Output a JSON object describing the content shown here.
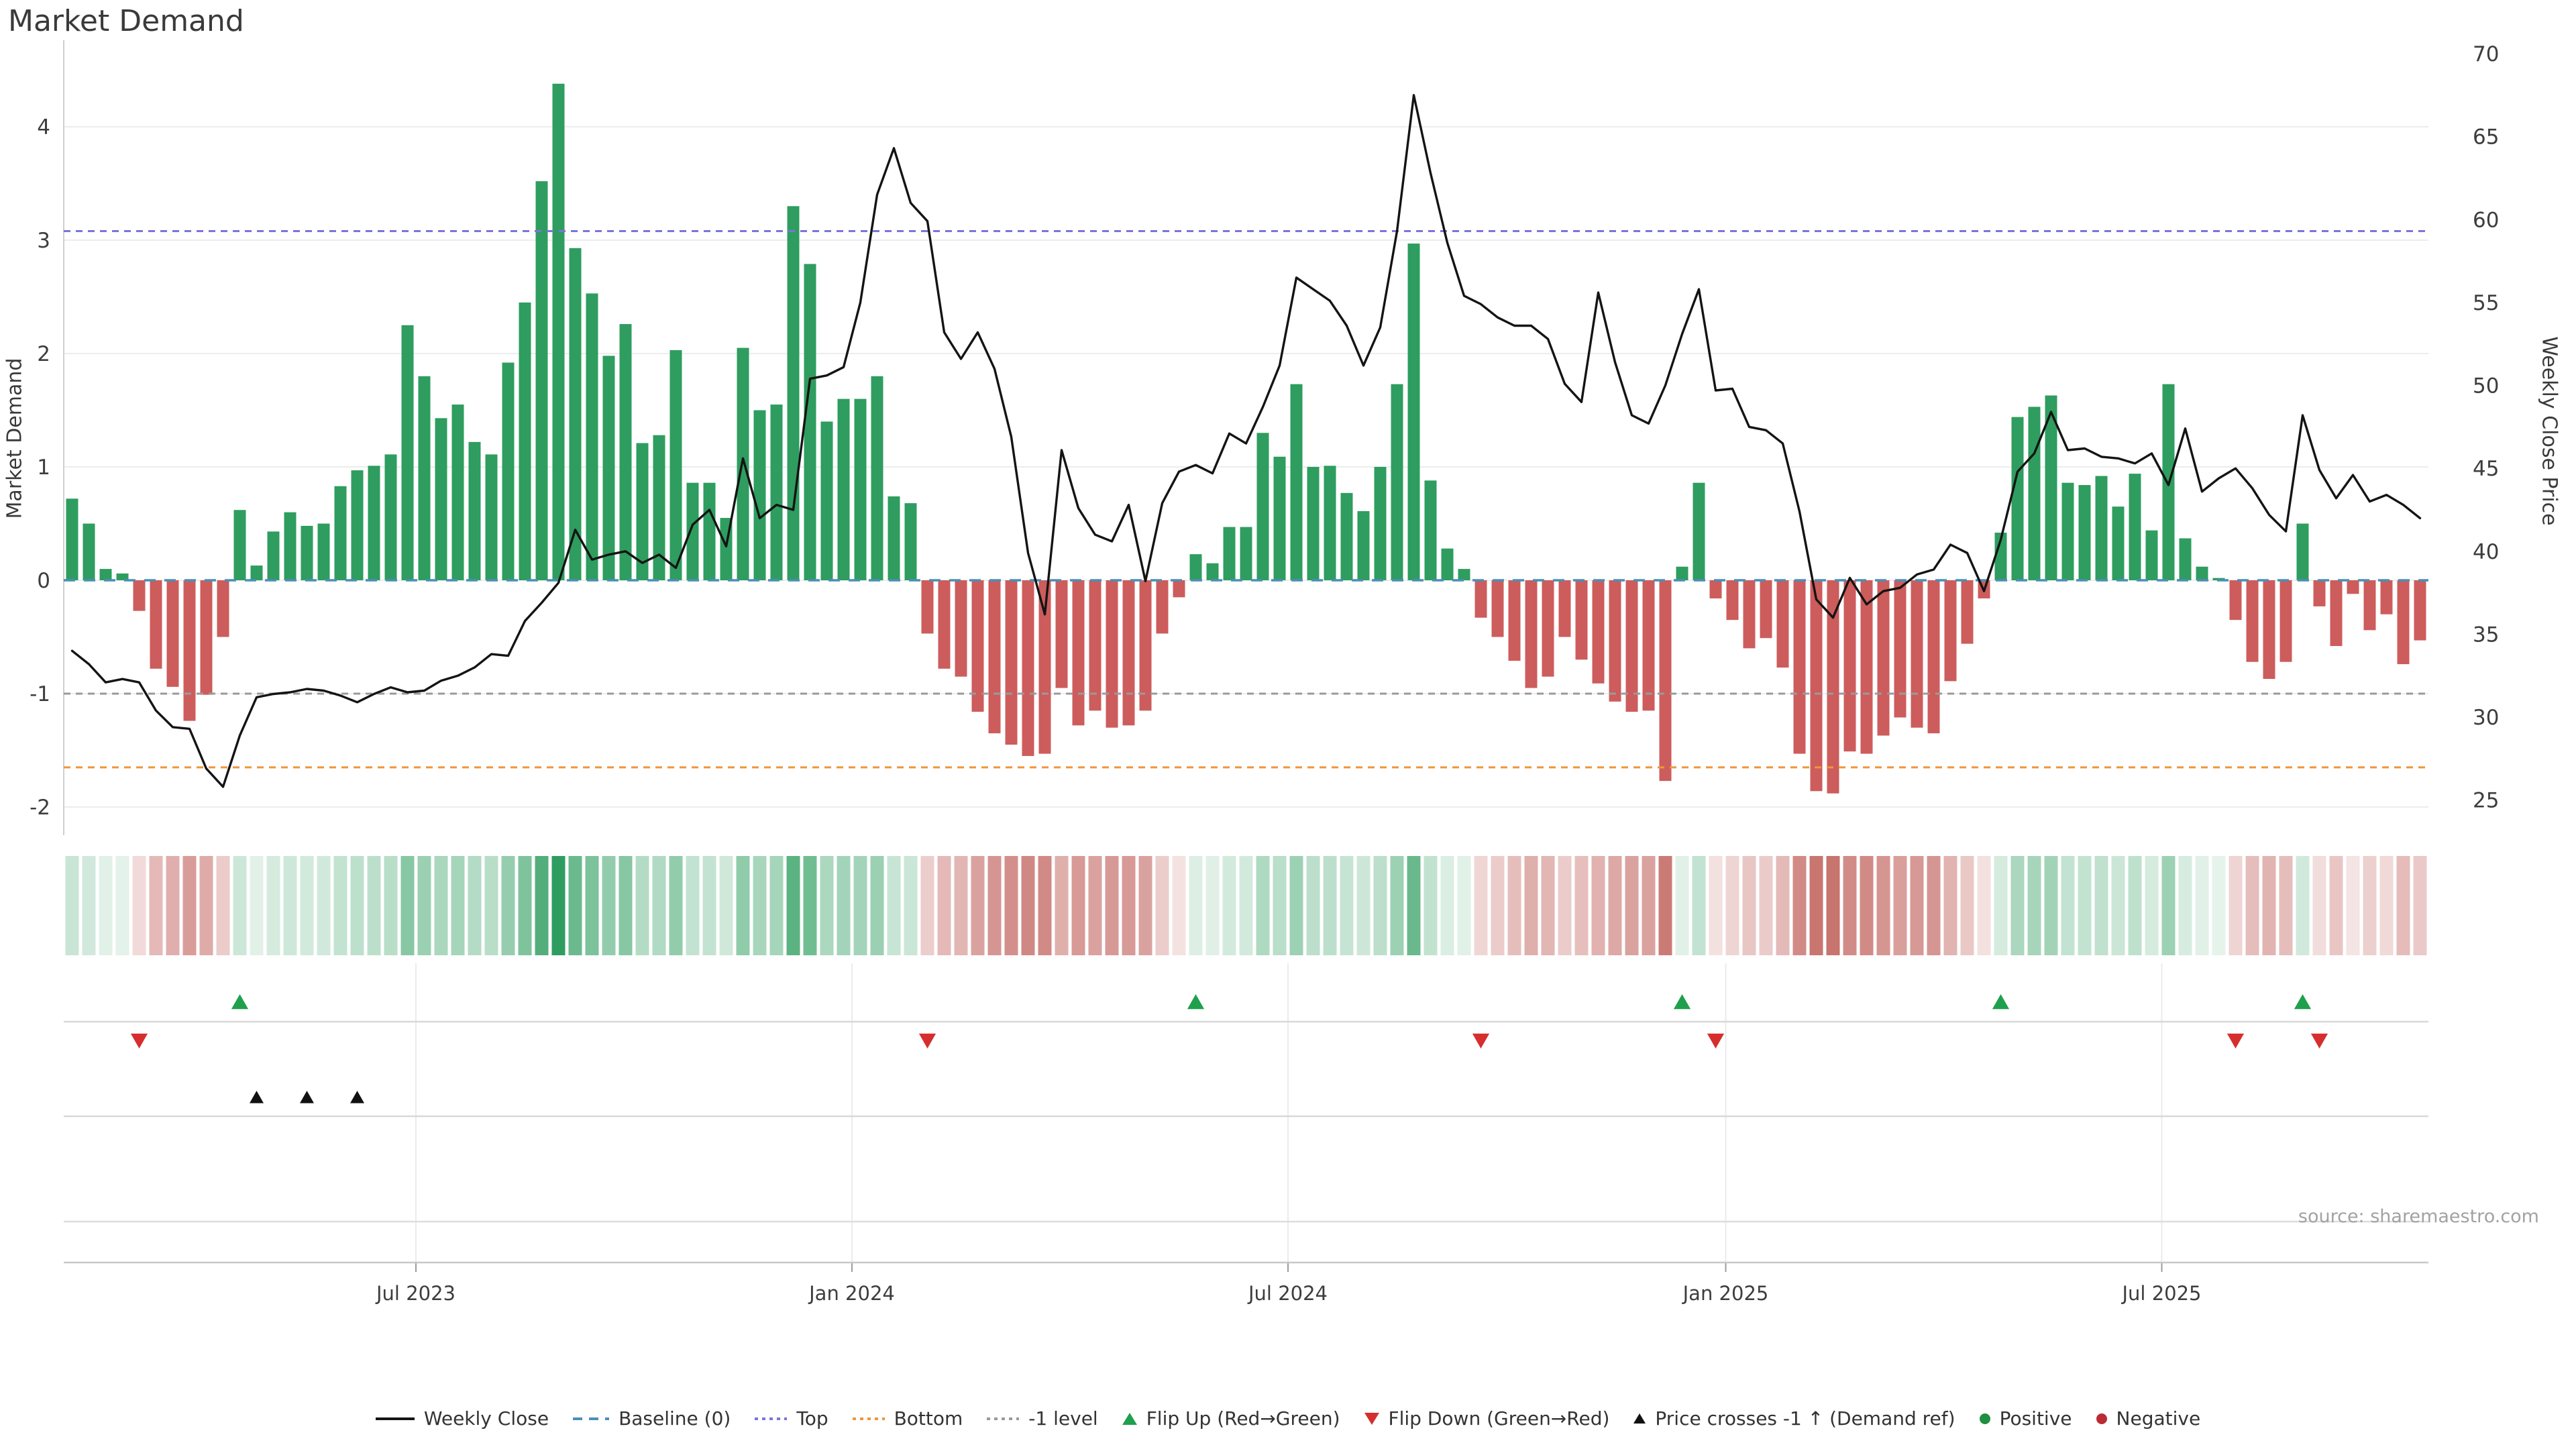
{
  "title": "Market Demand",
  "source": "source: sharemaestro.com",
  "axes": {
    "left_title": "Market Demand",
    "right_title": "Weekly Close Price"
  },
  "colors": {
    "green_bar": "#2e9d5f",
    "red_bar": "#cd5c5c",
    "price_line": "#141414",
    "baseline": "#4a8fb5",
    "top_level": "#7b74dd",
    "bottom_level": "#f0953c",
    "minus_one_level": "#9a9a9a",
    "flip_up": "#1fa04d",
    "flip_down": "#d62e2e",
    "price_cross": "#111111",
    "heat_green": "46,157,95",
    "heat_red": "178,60,53",
    "grid": "#ededed",
    "band_grid": "#d8d8d8",
    "tick_text": "#3d3d3d"
  },
  "chart_data": {
    "type": "bar+line",
    "title": "Market Demand",
    "ylabel_left": "Market Demand",
    "ylabel_right": "Weekly Close Price",
    "grid": "horizontal-only",
    "legend_position": "bottom-center",
    "left_ticks": [
      -2,
      -1,
      0,
      1,
      2,
      3,
      4
    ],
    "right_ticks": [
      25,
      30,
      35,
      40,
      45,
      50,
      55,
      60,
      65,
      70
    ],
    "left_range_note": "demand axis approx -2.25 to 4.75",
    "right_range_note": "price axis approx 23 to 71",
    "x_ticks": [
      {
        "label": "Jul 2023",
        "week": 21.0
      },
      {
        "label": "Jan 2024",
        "week": 47.0
      },
      {
        "label": "Jul 2024",
        "week": 73.0
      },
      {
        "label": "Jan 2025",
        "week": 99.1
      },
      {
        "label": "Jul 2025",
        "week": 125.1
      }
    ],
    "levels": {
      "baseline": 0,
      "top": 3.08,
      "bottom": -1.65,
      "minus_one": -1
    },
    "series": [
      {
        "name": "Market Demand (weekly bars)",
        "values_key": "demand"
      },
      {
        "name": "Weekly Close",
        "values_key": "price"
      }
    ],
    "demand": [
      0.72,
      0.5,
      0.1,
      0.06,
      -0.27,
      -0.78,
      -0.94,
      -1.24,
      -1.01,
      -0.5,
      0.62,
      0.13,
      0.43,
      0.6,
      0.48,
      0.5,
      0.83,
      0.97,
      1.01,
      1.11,
      2.25,
      1.8,
      1.43,
      1.55,
      1.22,
      1.11,
      1.92,
      2.45,
      3.52,
      4.38,
      2.93,
      2.53,
      1.98,
      2.26,
      1.21,
      1.28,
      2.03,
      0.86,
      0.86,
      0.55,
      2.05,
      1.5,
      1.55,
      3.3,
      2.79,
      1.4,
      1.6,
      1.6,
      1.8,
      0.74,
      0.68,
      -0.47,
      -0.78,
      -0.85,
      -1.16,
      -1.35,
      -1.45,
      -1.55,
      -1.53,
      -0.95,
      -1.28,
      -1.15,
      -1.3,
      -1.28,
      -1.15,
      -0.47,
      -0.15,
      0.23,
      0.15,
      0.47,
      0.47,
      1.3,
      1.09,
      1.73,
      1.0,
      1.01,
      0.77,
      0.61,
      1.0,
      1.73,
      2.97,
      0.88,
      0.28,
      0.1,
      -0.33,
      -0.5,
      -0.71,
      -0.95,
      -0.85,
      -0.5,
      -0.7,
      -0.91,
      -1.07,
      -1.16,
      -1.15,
      -1.77,
      0.12,
      0.86,
      -0.16,
      -0.35,
      -0.6,
      -0.51,
      -0.77,
      -1.53,
      -1.86,
      -1.88,
      -1.51,
      -1.53,
      -1.37,
      -1.21,
      -1.3,
      -1.35,
      -0.89,
      -0.56,
      -0.16,
      0.42,
      1.44,
      1.53,
      1.63,
      0.86,
      0.84,
      0.92,
      0.65,
      0.94,
      0.44,
      1.73,
      0.37,
      0.12,
      0.02,
      -0.35,
      -0.72,
      -0.87,
      -0.72,
      0.5,
      -0.23,
      -0.58,
      -0.12,
      -0.44,
      -0.3,
      -0.74,
      -0.53
    ],
    "price": [
      34.0,
      33.2,
      32.1,
      32.3,
      32.1,
      30.4,
      29.4,
      29.3,
      26.9,
      25.8,
      28.9,
      31.2,
      31.4,
      31.5,
      31.7,
      31.6,
      31.3,
      30.9,
      31.4,
      31.8,
      31.5,
      31.6,
      32.2,
      32.5,
      33.0,
      33.8,
      33.7,
      35.8,
      36.9,
      38.1,
      41.3,
      39.5,
      39.8,
      40.0,
      39.3,
      39.8,
      39.0,
      41.6,
      42.5,
      40.3,
      45.6,
      42.0,
      42.8,
      42.5,
      50.4,
      50.6,
      51.1,
      55.0,
      61.5,
      64.3,
      61.0,
      59.9,
      53.2,
      51.6,
      53.2,
      51.0,
      46.9,
      39.9,
      36.2,
      46.1,
      42.6,
      41.0,
      40.6,
      42.8,
      38.2,
      42.9,
      44.8,
      45.2,
      44.7,
      47.1,
      46.5,
      48.7,
      51.2,
      56.5,
      55.8,
      55.1,
      53.6,
      51.2,
      53.5,
      59.3,
      67.5,
      62.8,
      58.6,
      55.4,
      54.9,
      54.1,
      53.6,
      53.6,
      52.8,
      50.1,
      49.0,
      55.6,
      51.4,
      48.2,
      47.7,
      50.0,
      53.1,
      55.8,
      49.7,
      49.8,
      47.5,
      47.3,
      46.5,
      42.4,
      37.1,
      36.0,
      38.4,
      36.8,
      37.6,
      37.8,
      38.6,
      38.9,
      40.4,
      39.9,
      37.6,
      40.7,
      44.8,
      45.9,
      48.4,
      46.1,
      46.2,
      45.7,
      45.6,
      45.3,
      45.9,
      44.0,
      47.4,
      43.6,
      44.4,
      45.0,
      43.8,
      42.2,
      41.2,
      48.2,
      44.9,
      43.2,
      44.6,
      43.0,
      43.4,
      42.8,
      42.0
    ],
    "heatmap": {
      "note": "one cell per week, green intensity = positive demand, red intensity = negative demand"
    },
    "markers": {
      "flip_up_weeks": [
        10,
        67,
        96,
        115,
        133
      ],
      "flip_down_weeks": [
        4,
        51,
        84,
        98,
        129,
        134
      ],
      "price_cross_weeks": [
        11,
        14,
        17
      ]
    }
  },
  "legend": {
    "items": [
      {
        "label": "Weekly Close"
      },
      {
        "label": "Baseline (0)"
      },
      {
        "label": "Top"
      },
      {
        "label": "Bottom"
      },
      {
        "label": "-1 level"
      },
      {
        "label": "Flip Up (Red→Green)"
      },
      {
        "label": "Flip Down (Green→Red)"
      },
      {
        "label": "Price crosses -1 ↑ (Demand ref)"
      },
      {
        "label": "Positive"
      },
      {
        "label": "Negative"
      }
    ]
  }
}
